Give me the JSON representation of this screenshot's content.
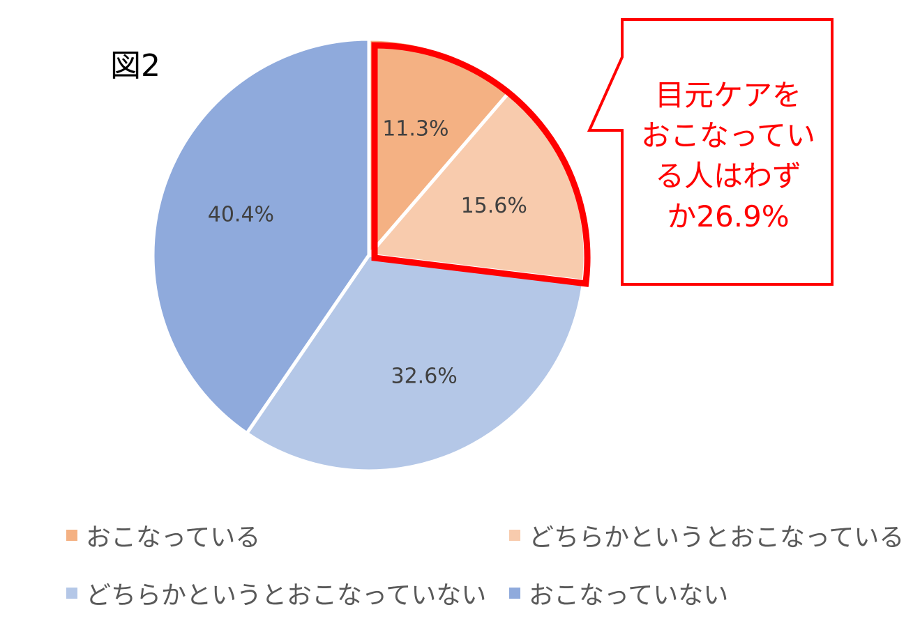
{
  "figure_label": "図2",
  "callout": {
    "lines": [
      "目元ケアを",
      "おこなってい",
      "る人はわず",
      "か26.9%"
    ],
    "color": "#ff0000"
  },
  "chart_data": {
    "type": "pie",
    "start_angle_deg": 0,
    "direction": "clockwise",
    "slices": [
      {
        "label": "おこなっている",
        "value": 11.3,
        "display": "11.3%",
        "color": "#f4b183"
      },
      {
        "label": "どちらかというとおこなっている",
        "value": 15.6,
        "display": "15.6%",
        "color": "#f8cbad"
      },
      {
        "label": "どちらかというとおこなっていない",
        "value": 32.6,
        "display": "32.6%",
        "color": "#b4c7e7"
      },
      {
        "label": "おこなっていない",
        "value": 40.4,
        "display": "40.4%",
        "color": "#8faadc"
      }
    ],
    "highlight": {
      "slices": [
        0,
        1
      ],
      "color": "#ff0000"
    },
    "legend_position": "bottom"
  }
}
